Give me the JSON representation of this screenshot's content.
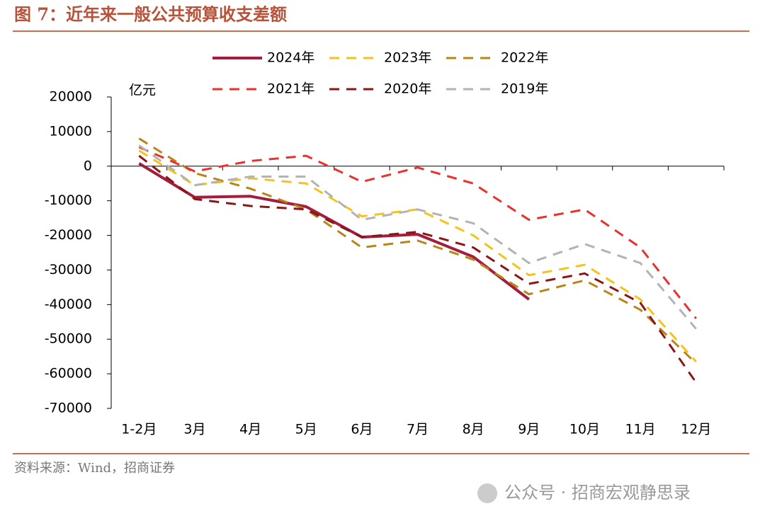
{
  "title": "图 7：近年来一般公共预算收支差额",
  "source": "资料来源：Wind，招商证券",
  "watermark": "公众号 · 招商宏观静思录",
  "chart_data": {
    "type": "line",
    "unit": "亿元",
    "categories": [
      "1-2月",
      "3月",
      "4月",
      "5月",
      "6月",
      "7月",
      "8月",
      "9月",
      "10月",
      "11月",
      "12月"
    ],
    "ylim": [
      -70000,
      20000
    ],
    "yticks": [
      20000,
      10000,
      0,
      -10000,
      -20000,
      -30000,
      -40000,
      -50000,
      -60000,
      -70000
    ],
    "series": [
      {
        "name": "2024年",
        "color": "#a31d3c",
        "dashed": false,
        "values": [
          800,
          -9000,
          -8700,
          -11700,
          -20500,
          -19700,
          -26200,
          -38500,
          null,
          null,
          null
        ]
      },
      {
        "name": "2023年",
        "color": "#f6c21c",
        "dashed": true,
        "values": [
          4500,
          -5500,
          -3500,
          -5000,
          -14500,
          -12500,
          -20000,
          -31500,
          -28500,
          -38500,
          -56500
        ]
      },
      {
        "name": "2022年",
        "color": "#b98517",
        "dashed": true,
        "values": [
          8000,
          -2000,
          -6500,
          -12500,
          -23500,
          -21500,
          -27000,
          -37000,
          -33000,
          -41500,
          -57000
        ]
      },
      {
        "name": "2021年",
        "color": "#e8322d",
        "dashed": true,
        "values": [
          5500,
          -1500,
          1500,
          3000,
          -4500,
          -400,
          -5000,
          -15500,
          -12500,
          -23500,
          -44000
        ]
      },
      {
        "name": "2020年",
        "color": "#8b1616",
        "dashed": true,
        "values": [
          3000,
          -9500,
          -11500,
          -12500,
          -20500,
          -19000,
          -23500,
          -34000,
          -31000,
          -39500,
          -62500
        ]
      },
      {
        "name": "2019年",
        "color": "#b3b3b3",
        "dashed": true,
        "values": [
          6000,
          -5500,
          -3000,
          -3000,
          -15500,
          -12500,
          -16500,
          -28000,
          -22500,
          -28000,
          -47000
        ]
      }
    ]
  }
}
